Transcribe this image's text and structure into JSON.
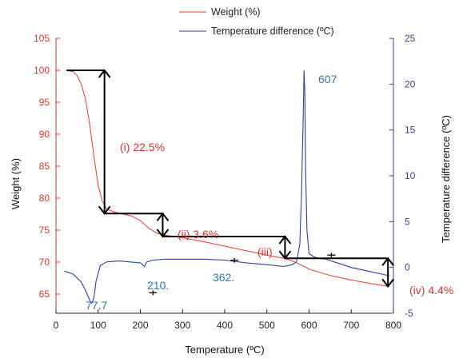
{
  "chart_data": {
    "type": "line",
    "xlabel": "Temperature (ºC)",
    "ylabel_left": "Weight (%)",
    "ylabel_right": "Temperature difference (ºC)",
    "xlim": [
      0,
      800
    ],
    "ylim_left": [
      62,
      105
    ],
    "ylim_right": [
      -5,
      25
    ],
    "x_ticks": [
      0,
      100,
      200,
      300,
      400,
      500,
      600,
      700,
      800
    ],
    "y_left_ticks": [
      65,
      70,
      75,
      80,
      85,
      90,
      95,
      100,
      105
    ],
    "y_right_ticks": [
      -5,
      0,
      5,
      10,
      15,
      20,
      25
    ],
    "grid": false,
    "legend_position": "top-center",
    "colors": {
      "weight": "#ee3b2b",
      "tdiff": "#2a3fa8",
      "left_axis": "#e0322c",
      "right_axis": "#3340a0",
      "arrows": "#000000",
      "anno_blue": "#2f74b5"
    },
    "series": [
      {
        "name": "Weight (%)",
        "axis": "left",
        "x": [
          25,
          40,
          50,
          60,
          70,
          80,
          90,
          100,
          110,
          120,
          140,
          160,
          180,
          200,
          220,
          240,
          260,
          300,
          350,
          400,
          450,
          500,
          540,
          560,
          580,
          600,
          650,
          700,
          750,
          790
        ],
        "y": [
          100,
          99.8,
          99.2,
          97.8,
          95.5,
          91.5,
          86.5,
          82,
          79.5,
          78.3,
          77.8,
          77.5,
          77.2,
          76.5,
          75.3,
          74.5,
          74.2,
          73.8,
          73.2,
          72.5,
          71.8,
          71.1,
          70.6,
          70.2,
          69.6,
          68.9,
          67.9,
          67.2,
          66.6,
          66.2
        ]
      },
      {
        "name": "Temperature difference (ºC)",
        "axis": "right",
        "x": [
          20,
          40,
          60,
          70,
          80,
          85,
          90,
          95,
          105,
          120,
          150,
          200,
          210,
          215,
          230,
          260,
          300,
          350,
          400,
          450,
          500,
          540,
          560,
          570,
          578,
          582,
          586,
          588,
          590,
          592,
          595,
          600,
          610,
          620,
          640,
          660,
          700,
          750,
          790
        ],
        "y": [
          -0.4,
          -0.7,
          -1.6,
          -2.5,
          -3.6,
          -3.9,
          -3.3,
          -1.5,
          0.2,
          0.6,
          0.7,
          0.5,
          0.1,
          0.6,
          0.8,
          0.9,
          0.9,
          0.9,
          0.8,
          0.5,
          0.3,
          0.1,
          0.3,
          0.6,
          2.5,
          8,
          16,
          21.5,
          19,
          10,
          4,
          1.5,
          1.2,
          1,
          0.9,
          0.6,
          0,
          -0.5,
          -0.9
        ]
      }
    ],
    "annotations": [
      {
        "text": "(i) 22.5%",
        "color": "red"
      },
      {
        "text": "(ii) 3.6%",
        "color": "red"
      },
      {
        "text": "(iii)",
        "color": "red"
      },
      {
        "text": "(iv) 4.4%",
        "color": "red"
      },
      {
        "text": "607",
        "color": "blue"
      },
      {
        "text": "210.",
        "color": "blue"
      },
      {
        "text": "362.",
        "color": "blue"
      },
      {
        "text": "77.7",
        "color": "blue"
      }
    ],
    "markers_plus": [
      {
        "x": 230,
        "y_left": 65.2
      },
      {
        "x": 423,
        "y_left": 70.3
      },
      {
        "x": 653,
        "y_left": 71.1
      }
    ],
    "step_lines": [
      {
        "from_x": 25,
        "to_x": 115,
        "y": 100
      },
      {
        "from_x": 115,
        "to_x": 255,
        "y": 77.6
      },
      {
        "from_x": 255,
        "to_x": 545,
        "y": 74
      },
      {
        "from_x": 545,
        "to_x": 785,
        "y": 70.6
      }
    ],
    "vertical_arrows": [
      {
        "x": 115,
        "y_top": 100,
        "y_bottom": 77.6
      },
      {
        "x": 253,
        "y_top": 77.6,
        "y_bottom": 74
      },
      {
        "x": 543,
        "y_top": 74,
        "y_bottom": 70.6
      },
      {
        "x": 787,
        "y_top": 70.6,
        "y_bottom": 66.2
      }
    ]
  }
}
